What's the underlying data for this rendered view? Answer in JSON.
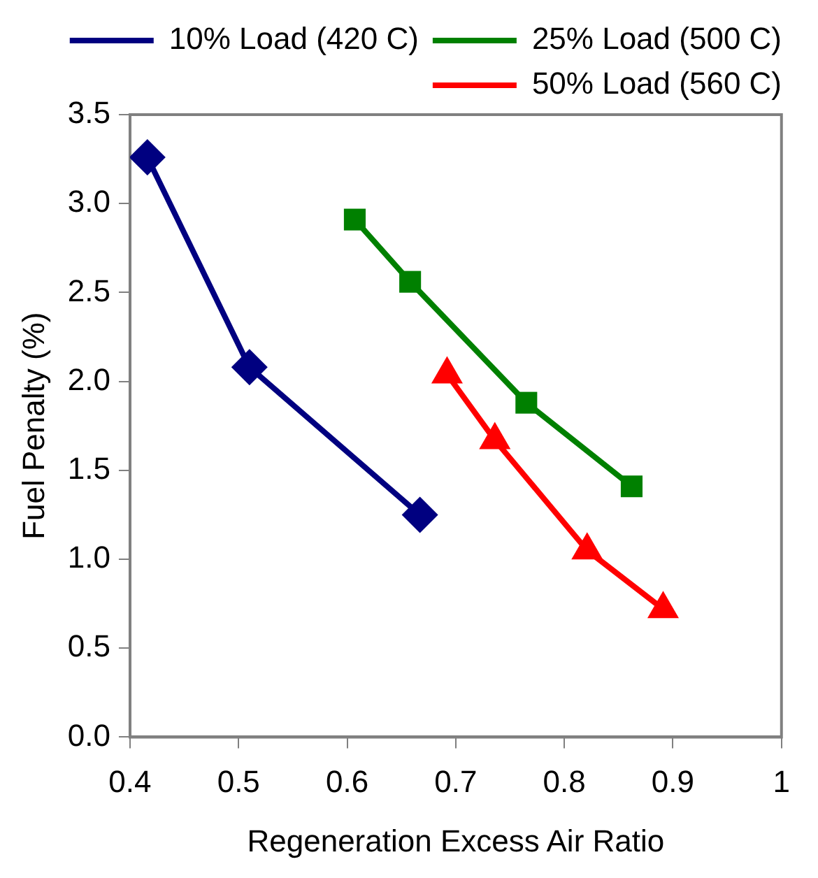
{
  "chart_data": {
    "type": "line",
    "xlabel": "Regeneration Excess Air Ratio",
    "ylabel": "Fuel Penalty (%)",
    "xlim": [
      0.4,
      1
    ],
    "xticks": [
      0.4,
      0.5,
      0.6,
      0.7,
      0.8,
      0.9,
      1
    ],
    "ylim": [
      0,
      3.5
    ],
    "yticks": [
      {
        "value": 0,
        "label": "0.0"
      },
      {
        "value": 0.5,
        "label": "0.5"
      },
      {
        "value": 1,
        "label": "1.0"
      },
      {
        "value": 1.5,
        "label": "1.5"
      },
      {
        "value": 2,
        "label": "2.0"
      },
      {
        "value": 2.5,
        "label": "2.5"
      },
      {
        "value": 3,
        "label": "3.0"
      },
      {
        "value": 3.5,
        "label": "3.5"
      }
    ],
    "grid": false,
    "legend": "top right",
    "line_style": "solid",
    "series": [
      {
        "name": "10% Load (420 C)",
        "color": "#000080",
        "marker": "diamond",
        "x": [
          0.416,
          0.51,
          0.667
        ],
        "values": [
          3.26,
          2.08,
          1.25
        ]
      },
      {
        "name": "25% Load (500 C)",
        "color": "#008000",
        "marker": "square",
        "x": [
          0.607,
          0.658,
          0.765,
          0.862
        ],
        "values": [
          2.91,
          2.56,
          1.88,
          1.41
        ]
      },
      {
        "name": "50% Load (560 C)",
        "color": "#ff0000",
        "marker": "triangle",
        "x": [
          0.692,
          0.736,
          0.821,
          0.891
        ],
        "values": [
          2.04,
          1.67,
          1.05,
          0.72
        ]
      }
    ]
  }
}
